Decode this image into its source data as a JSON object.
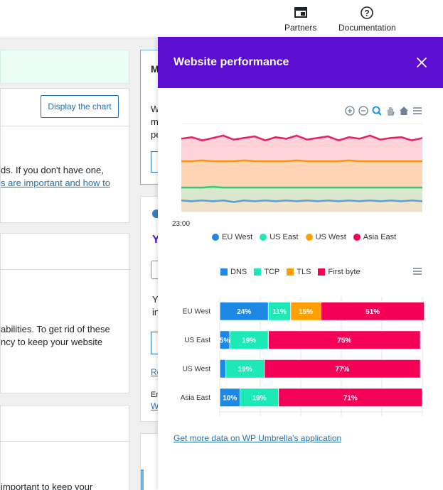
{
  "topnav": {
    "partners": "Partners",
    "documentation": "Documentation"
  },
  "background": {
    "display_chart_button": "Display the chart",
    "letter_m": "M",
    "letter_w": "W",
    "letter_m2": "m",
    "letter_pe": "pe",
    "text1": "ds. If you don't have one,",
    "link1": "s are important and how to",
    "text2": "abilities. To get rid of these",
    "text3": "ncy to keep your website",
    "letter_y": "Y",
    "letter_yo": "Yo",
    "letter_in": "in",
    "link_re": "Re",
    "letter_en": "En",
    "link_w": "W",
    "text4": "important to keep your"
  },
  "panel": {
    "title": "Website performance",
    "footer_link": "Get more data on WP Umbrella's application"
  },
  "colors": {
    "purple": "#5b0ecf",
    "dns": "#1e88e5",
    "tcp": "#1de9b6",
    "tls": "#ffa000",
    "firstbyte": "#f50057"
  },
  "chart_data": [
    {
      "type": "area",
      "x_tick_labels": [
        "23:00"
      ],
      "series": [
        {
          "name": "EU West",
          "color": "#5a9fd4",
          "values": [
            14,
            13,
            14,
            13,
            14,
            12,
            14,
            13,
            14,
            13,
            14,
            13,
            14,
            13,
            14,
            13,
            14,
            13,
            14,
            13,
            14,
            13,
            14,
            13
          ]
        },
        {
          "name": "US East",
          "color": "#2ecc71",
          "values": [
            30,
            30,
            30,
            31,
            30,
            30,
            30,
            30,
            30,
            30,
            30,
            30,
            30,
            30,
            30,
            30,
            30,
            30,
            30,
            30,
            30,
            30,
            30,
            30
          ]
        },
        {
          "name": "US West",
          "color": "#ff9800",
          "values": [
            63,
            63,
            64,
            63,
            63,
            63,
            64,
            63,
            63,
            63,
            63,
            64,
            63,
            63,
            63,
            63,
            64,
            63,
            63,
            63,
            63,
            63,
            63,
            63
          ]
        },
        {
          "name": "Asia East",
          "color": "#e91e63",
          "values": [
            91,
            93,
            89,
            92,
            95,
            90,
            92,
            94,
            89,
            93,
            91,
            95,
            90,
            92,
            94,
            89,
            93,
            91,
            95,
            90,
            92,
            93,
            89,
            92
          ]
        }
      ]
    },
    {
      "type": "bar",
      "orientation": "horizontal",
      "stacked": true,
      "categories": [
        "EU West",
        "US East",
        "US West",
        "Asia East"
      ],
      "series": [
        {
          "name": "DNS",
          "color": "#1e88e5",
          "values": [
            24,
            5,
            3,
            10
          ],
          "labels": [
            "24%",
            "5%",
            "",
            "10%"
          ]
        },
        {
          "name": "TCP",
          "color": "#1de9b6",
          "values": [
            11,
            19,
            19,
            19
          ],
          "labels": [
            "11%",
            "19%",
            "19%",
            "19%"
          ]
        },
        {
          "name": "TLS",
          "color": "#ffa000",
          "values": [
            15,
            0,
            0,
            0
          ],
          "labels": [
            "15%",
            "",
            "",
            ""
          ]
        },
        {
          "name": "First byte",
          "color": "#f50057",
          "values": [
            51,
            75,
            77,
            71
          ],
          "labels": [
            "51%",
            "75%",
            "77%",
            "71%"
          ]
        }
      ],
      "xlim": [
        0,
        100
      ]
    }
  ]
}
